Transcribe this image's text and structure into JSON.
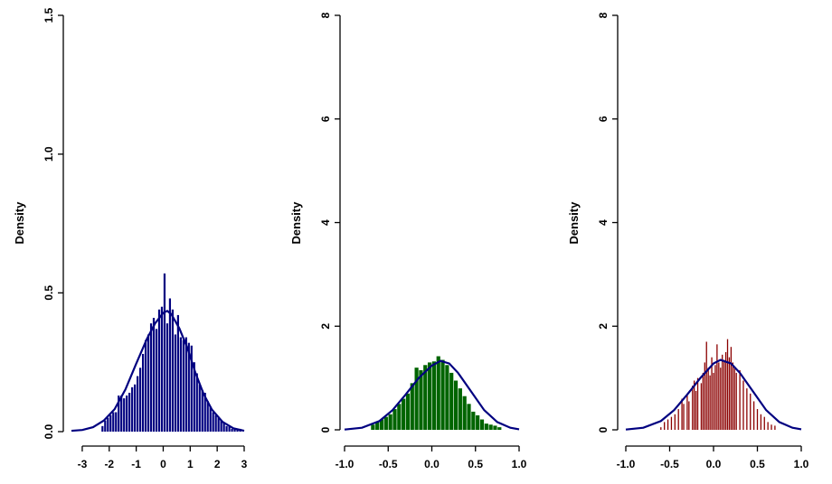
{
  "chart_data": [
    {
      "type": "bar",
      "series_name": "",
      "ylabel": "Density",
      "xlabel": "",
      "title": "",
      "bar_color": "#000080",
      "curve_color": "#000080",
      "xlim": [
        -3.5,
        3.1
      ],
      "ylim": [
        0,
        1.5
      ],
      "x_ticks": [
        -3,
        -2,
        -1,
        0,
        1,
        2,
        3
      ],
      "x_tick_labels": [
        "-3",
        "-2",
        "-1",
        "0",
        "1",
        "2",
        "3"
      ],
      "y_ticks": [
        0,
        0.5,
        1.0,
        1.5
      ],
      "y_tick_labels": [
        "0.0",
        "0.5",
        "1.0",
        "1.5"
      ],
      "bin_width": 0.1,
      "bins": [
        {
          "x": -2.25,
          "y": 0.02
        },
        {
          "x": -2.15,
          "y": 0.04
        },
        {
          "x": -2.05,
          "y": 0.05
        },
        {
          "x": -1.95,
          "y": 0.06
        },
        {
          "x": -1.85,
          "y": 0.07
        },
        {
          "x": -1.75,
          "y": 0.07
        },
        {
          "x": -1.65,
          "y": 0.13
        },
        {
          "x": -1.55,
          "y": 0.13
        },
        {
          "x": -1.45,
          "y": 0.12
        },
        {
          "x": -1.35,
          "y": 0.13
        },
        {
          "x": -1.25,
          "y": 0.14
        },
        {
          "x": -1.15,
          "y": 0.16
        },
        {
          "x": -1.05,
          "y": 0.17
        },
        {
          "x": -0.95,
          "y": 0.2
        },
        {
          "x": -0.85,
          "y": 0.23
        },
        {
          "x": -0.75,
          "y": 0.28
        },
        {
          "x": -0.65,
          "y": 0.33
        },
        {
          "x": -0.55,
          "y": 0.35
        },
        {
          "x": -0.45,
          "y": 0.39
        },
        {
          "x": -0.35,
          "y": 0.41
        },
        {
          "x": -0.25,
          "y": 0.37
        },
        {
          "x": -0.15,
          "y": 0.44
        },
        {
          "x": -0.05,
          "y": 0.45
        },
        {
          "x": 0.05,
          "y": 0.57
        },
        {
          "x": 0.15,
          "y": 0.39
        },
        {
          "x": 0.25,
          "y": 0.48
        },
        {
          "x": 0.35,
          "y": 0.44
        },
        {
          "x": 0.45,
          "y": 0.35
        },
        {
          "x": 0.55,
          "y": 0.42
        },
        {
          "x": 0.65,
          "y": 0.34
        },
        {
          "x": 0.75,
          "y": 0.33
        },
        {
          "x": 0.85,
          "y": 0.34
        },
        {
          "x": 0.95,
          "y": 0.32
        },
        {
          "x": 1.05,
          "y": 0.31
        },
        {
          "x": 1.15,
          "y": 0.25
        },
        {
          "x": 1.25,
          "y": 0.21
        },
        {
          "x": 1.35,
          "y": 0.17
        },
        {
          "x": 1.45,
          "y": 0.15
        },
        {
          "x": 1.55,
          "y": 0.14
        },
        {
          "x": 1.65,
          "y": 0.11
        },
        {
          "x": 1.75,
          "y": 0.09
        },
        {
          "x": 1.85,
          "y": 0.07
        },
        {
          "x": 1.95,
          "y": 0.06
        },
        {
          "x": 2.05,
          "y": 0.05
        },
        {
          "x": 2.15,
          "y": 0.04
        },
        {
          "x": 2.25,
          "y": 0.03
        },
        {
          "x": 2.35,
          "y": 0.02
        },
        {
          "x": 2.45,
          "y": 0.02
        },
        {
          "x": 2.55,
          "y": 0.01
        },
        {
          "x": 2.65,
          "y": 0.01
        },
        {
          "x": 2.75,
          "y": 0.01
        },
        {
          "x": 2.85,
          "y": 0.01
        }
      ],
      "curve": [
        [
          -3.4,
          0.003
        ],
        [
          -3.0,
          0.006
        ],
        [
          -2.6,
          0.016
        ],
        [
          -2.2,
          0.04
        ],
        [
          -1.8,
          0.081
        ],
        [
          -1.4,
          0.152
        ],
        [
          -1.0,
          0.245
        ],
        [
          -0.6,
          0.335
        ],
        [
          -0.3,
          0.39
        ],
        [
          0.0,
          0.428
        ],
        [
          0.15,
          0.435
        ],
        [
          0.3,
          0.423
        ],
        [
          0.6,
          0.372
        ],
        [
          0.9,
          0.3
        ],
        [
          1.2,
          0.21
        ],
        [
          1.5,
          0.135
        ],
        [
          1.8,
          0.08
        ],
        [
          2.2,
          0.035
        ],
        [
          2.6,
          0.012
        ],
        [
          3.0,
          0.003
        ]
      ]
    },
    {
      "type": "bar",
      "series_name": "",
      "ylabel": "Density",
      "xlabel": "",
      "title": "",
      "bar_color": "#006400",
      "curve_color": "#000080",
      "xlim": [
        -1.0,
        1.0
      ],
      "ylim": [
        0,
        8
      ],
      "x_ticks": [
        -1.0,
        -0.5,
        0.0,
        0.5,
        1.0
      ],
      "x_tick_labels": [
        "-1.0",
        "-0.5",
        "0.0",
        "0.5",
        "1.0"
      ],
      "y_ticks": [
        0,
        2,
        4,
        6,
        8
      ],
      "y_tick_labels": [
        "0",
        "2",
        "4",
        "6",
        "8"
      ],
      "bin_width": 0.05,
      "bins": [
        {
          "x": -0.675,
          "y": 0.1
        },
        {
          "x": -0.625,
          "y": 0.15
        },
        {
          "x": -0.575,
          "y": 0.2
        },
        {
          "x": -0.525,
          "y": 0.25
        },
        {
          "x": -0.475,
          "y": 0.3
        },
        {
          "x": -0.425,
          "y": 0.4
        },
        {
          "x": -0.375,
          "y": 0.5
        },
        {
          "x": -0.325,
          "y": 0.6
        },
        {
          "x": -0.275,
          "y": 0.7
        },
        {
          "x": -0.225,
          "y": 0.9
        },
        {
          "x": -0.175,
          "y": 1.2
        },
        {
          "x": -0.125,
          "y": 1.15
        },
        {
          "x": -0.075,
          "y": 1.25
        },
        {
          "x": -0.025,
          "y": 1.3
        },
        {
          "x": 0.025,
          "y": 1.32
        },
        {
          "x": 0.075,
          "y": 1.42
        },
        {
          "x": 0.125,
          "y": 1.35
        },
        {
          "x": 0.175,
          "y": 1.25
        },
        {
          "x": 0.225,
          "y": 1.1
        },
        {
          "x": 0.275,
          "y": 0.95
        },
        {
          "x": 0.325,
          "y": 0.8
        },
        {
          "x": 0.375,
          "y": 0.65
        },
        {
          "x": 0.425,
          "y": 0.5
        },
        {
          "x": 0.475,
          "y": 0.35
        },
        {
          "x": 0.525,
          "y": 0.28
        },
        {
          "x": 0.575,
          "y": 0.2
        },
        {
          "x": 0.625,
          "y": 0.12
        },
        {
          "x": 0.675,
          "y": 0.1
        },
        {
          "x": 0.725,
          "y": 0.08
        },
        {
          "x": 0.775,
          "y": 0.05
        }
      ],
      "curve": [
        [
          -1.0,
          0.005
        ],
        [
          -0.8,
          0.04
        ],
        [
          -0.6,
          0.17
        ],
        [
          -0.45,
          0.38
        ],
        [
          -0.3,
          0.68
        ],
        [
          -0.15,
          1.0
        ],
        [
          0.0,
          1.24
        ],
        [
          0.1,
          1.33
        ],
        [
          0.2,
          1.28
        ],
        [
          0.3,
          1.1
        ],
        [
          0.45,
          0.74
        ],
        [
          0.6,
          0.38
        ],
        [
          0.75,
          0.15
        ],
        [
          0.9,
          0.04
        ],
        [
          1.0,
          0.01
        ]
      ]
    },
    {
      "type": "bar",
      "series_name": "",
      "ylabel": "Density",
      "xlabel": "",
      "title": "",
      "bar_color": "#8B0000",
      "curve_color": "#000080",
      "xlim": [
        -1.0,
        1.0
      ],
      "ylim": [
        0,
        8
      ],
      "x_ticks": [
        -1.0,
        -0.5,
        0.0,
        0.5,
        1.0
      ],
      "x_tick_labels": [
        "-1.0",
        "-0.5",
        "0.0",
        "0.5",
        "1.0"
      ],
      "y_ticks": [
        0,
        2,
        4,
        6,
        8
      ],
      "y_tick_labels": [
        "0",
        "2",
        "4",
        "6",
        "8"
      ],
      "bin_width": 0.02,
      "bins": [
        {
          "x": -0.6,
          "y": 0.05
        },
        {
          "x": -0.56,
          "y": 0.15
        },
        {
          "x": -0.52,
          "y": 0.2
        },
        {
          "x": -0.48,
          "y": 0.25
        },
        {
          "x": -0.44,
          "y": 0.3
        },
        {
          "x": -0.4,
          "y": 0.4
        },
        {
          "x": -0.36,
          "y": 0.6
        },
        {
          "x": -0.34,
          "y": 0.5
        },
        {
          "x": -0.3,
          "y": 0.7
        },
        {
          "x": -0.28,
          "y": 0.55
        },
        {
          "x": -0.24,
          "y": 0.85
        },
        {
          "x": -0.22,
          "y": 0.95
        },
        {
          "x": -0.2,
          "y": 0.75
        },
        {
          "x": -0.18,
          "y": 1.0
        },
        {
          "x": -0.14,
          "y": 0.9
        },
        {
          "x": -0.12,
          "y": 1.1
        },
        {
          "x": -0.1,
          "y": 1.3
        },
        {
          "x": -0.08,
          "y": 1.7
        },
        {
          "x": -0.06,
          "y": 1.2
        },
        {
          "x": -0.04,
          "y": 1.05
        },
        {
          "x": -0.02,
          "y": 1.4
        },
        {
          "x": 0.0,
          "y": 1.1
        },
        {
          "x": 0.02,
          "y": 1.25
        },
        {
          "x": 0.04,
          "y": 1.65
        },
        {
          "x": 0.06,
          "y": 1.3
        },
        {
          "x": 0.08,
          "y": 1.2
        },
        {
          "x": 0.1,
          "y": 1.45
        },
        {
          "x": 0.12,
          "y": 1.35
        },
        {
          "x": 0.14,
          "y": 1.5
        },
        {
          "x": 0.16,
          "y": 1.75
        },
        {
          "x": 0.18,
          "y": 1.4
        },
        {
          "x": 0.2,
          "y": 1.6
        },
        {
          "x": 0.22,
          "y": 1.3
        },
        {
          "x": 0.24,
          "y": 1.2
        },
        {
          "x": 0.26,
          "y": 1.1
        },
        {
          "x": 0.3,
          "y": 1.15
        },
        {
          "x": 0.34,
          "y": 0.95
        },
        {
          "x": 0.38,
          "y": 0.8
        },
        {
          "x": 0.42,
          "y": 0.7
        },
        {
          "x": 0.46,
          "y": 0.55
        },
        {
          "x": 0.5,
          "y": 0.4
        },
        {
          "x": 0.54,
          "y": 0.3
        },
        {
          "x": 0.58,
          "y": 0.25
        },
        {
          "x": 0.62,
          "y": 0.15
        },
        {
          "x": 0.66,
          "y": 0.1
        },
        {
          "x": 0.7,
          "y": 0.08
        }
      ],
      "curve": [
        [
          -1.0,
          0.005
        ],
        [
          -0.8,
          0.04
        ],
        [
          -0.6,
          0.17
        ],
        [
          -0.45,
          0.38
        ],
        [
          -0.3,
          0.68
        ],
        [
          -0.15,
          1.0
        ],
        [
          0.0,
          1.28
        ],
        [
          0.08,
          1.35
        ],
        [
          0.2,
          1.28
        ],
        [
          0.3,
          1.1
        ],
        [
          0.45,
          0.74
        ],
        [
          0.6,
          0.38
        ],
        [
          0.75,
          0.15
        ],
        [
          0.9,
          0.04
        ],
        [
          1.0,
          0.01
        ]
      ]
    }
  ]
}
